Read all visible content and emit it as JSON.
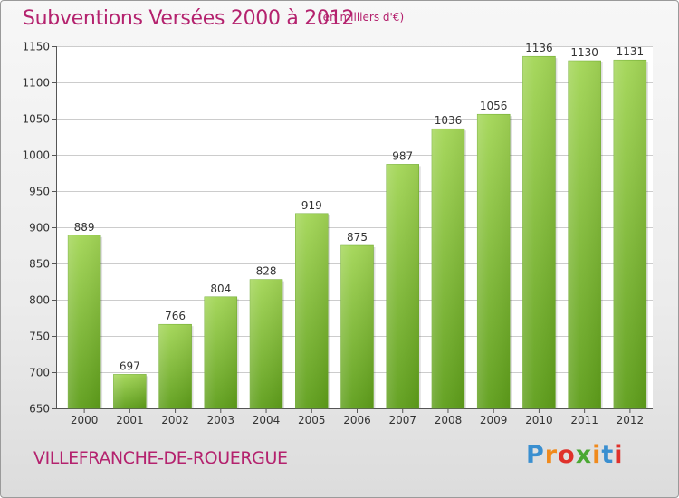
{
  "header": {
    "title": "Subventions Versées 2000 à 2012",
    "subtitle": "(en milliers d'€)"
  },
  "footer": {
    "location": "VILLEFRANCHE-DE-ROUERGUE",
    "logo_text": "Proxiti"
  },
  "colors": {
    "title": "#b4226e",
    "bar_top": "#a3d656",
    "bar_bottom": "#5e9e1a",
    "grid": "#cccccc"
  },
  "chart_data": {
    "type": "bar",
    "title": "Subventions Versées 2000 à 2012",
    "subtitle": "(en milliers d'€)",
    "xlabel": "",
    "ylabel": "",
    "categories": [
      "2000",
      "2001",
      "2002",
      "2003",
      "2004",
      "2005",
      "2006",
      "2007",
      "2008",
      "2009",
      "2010",
      "2011",
      "2012"
    ],
    "values": [
      889,
      697,
      766,
      804,
      828,
      919,
      875,
      987,
      1036,
      1056,
      1136,
      1130,
      1131
    ],
    "ylim": [
      650,
      1150
    ],
    "yticks": [
      650,
      700,
      750,
      800,
      850,
      900,
      950,
      1000,
      1050,
      1100,
      1150
    ],
    "grid": true,
    "data_labels": true
  }
}
